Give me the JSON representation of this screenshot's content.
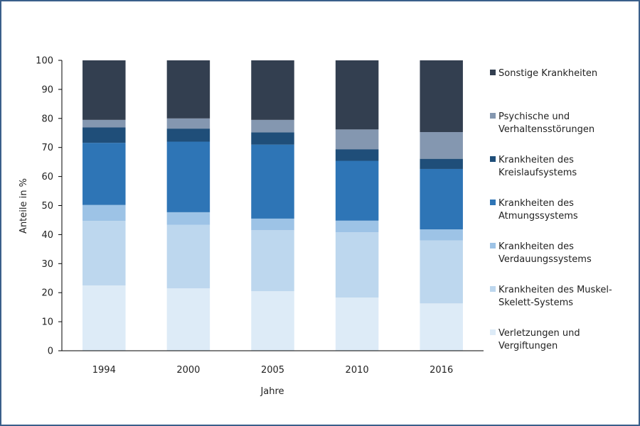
{
  "chart_data": {
    "type": "bar",
    "stacked": true,
    "title": "",
    "xlabel": "Jahre",
    "ylabel": "Anteile in %",
    "ylim": [
      0,
      100
    ],
    "yticks": [
      0,
      10,
      20,
      30,
      40,
      50,
      60,
      70,
      80,
      90,
      100
    ],
    "grid": false,
    "legend_position": "right",
    "categories": [
      "1994",
      "2000",
      "2005",
      "2010",
      "2016"
    ],
    "series": [
      {
        "name": "Verletzungen und Vergiftungen",
        "lines": [
          "Verletzungen und",
          "Vergiftungen"
        ],
        "color": "#ddebf7",
        "values": [
          22.5,
          21.5,
          20.5,
          18.3,
          16.3
        ]
      },
      {
        "name": "Krankheiten des Muskel-Skelett-Systems",
        "lines": [
          "Krankheiten des Muskel-",
          "Skelett-Systems"
        ],
        "color": "#bdd7ee",
        "values": [
          22.2,
          21.9,
          21.0,
          22.5,
          21.7
        ]
      },
      {
        "name": "Krankheiten des Verdauungssystems",
        "lines": [
          "Krankheiten des",
          "Verdauungssystems"
        ],
        "color": "#9dc3e6",
        "values": [
          5.5,
          4.3,
          4.0,
          4.0,
          3.8
        ]
      },
      {
        "name": "Krankheiten des Atmungssystems",
        "lines": [
          "Krankheiten des",
          "Atmungssystems"
        ],
        "color": "#2e75b6",
        "values": [
          21.4,
          24.3,
          25.5,
          20.6,
          20.8
        ]
      },
      {
        "name": "Krankheiten des Kreislaufsystems",
        "lines": [
          "Krankheiten des",
          "Kreislaufsystems"
        ],
        "color": "#1f4e79",
        "values": [
          5.3,
          4.5,
          4.2,
          4.0,
          3.5
        ]
      },
      {
        "name": "Psychische und Verhaltensstörungen",
        "lines": [
          "Psychische und",
          "Verhaltensstörungen"
        ],
        "color": "#8497b0",
        "values": [
          2.6,
          3.5,
          4.3,
          6.8,
          9.2
        ]
      },
      {
        "name": "Sonstige Krankheiten",
        "lines": [
          "Sonstige Krankheiten"
        ],
        "color": "#333f50",
        "values": [
          20.5,
          20.0,
          20.5,
          23.8,
          24.7
        ]
      }
    ]
  }
}
